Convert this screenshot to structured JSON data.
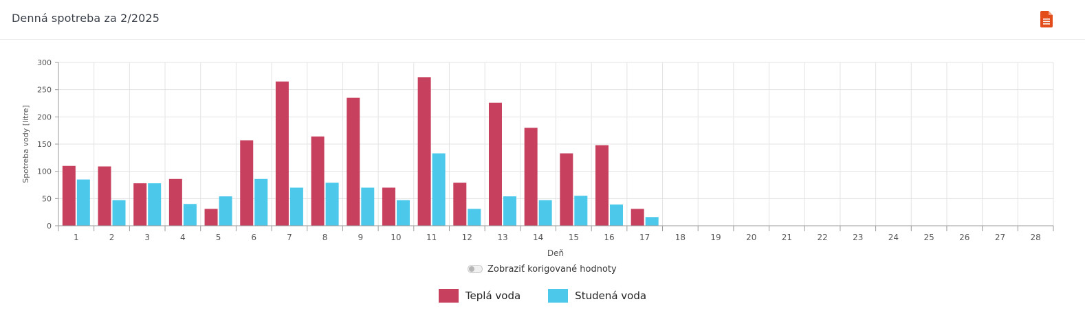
{
  "header": {
    "title": "Denná spotreba za 2/2025",
    "pdf_icon": "file-document-icon",
    "pdf_color": "#e24d1b"
  },
  "toggle": {
    "label": "Zobraziť korigované hodnoty",
    "checked": false
  },
  "colors": {
    "hot": "#c7405e",
    "cold": "#4cc8ea",
    "grid": "#e3e3e3",
    "axis": "#9a9a9a",
    "tick_text": "#555555"
  },
  "chart_data": {
    "type": "bar",
    "xlabel": "Deň",
    "ylabel": "Spotreba vody [litre]",
    "ylim": [
      0,
      300
    ],
    "yticks": [
      0,
      50,
      100,
      150,
      200,
      250,
      300
    ],
    "grid": true,
    "legend_position": "bottom",
    "categories": [
      "1",
      "2",
      "3",
      "4",
      "5",
      "6",
      "7",
      "8",
      "9",
      "10",
      "11",
      "12",
      "13",
      "14",
      "15",
      "16",
      "17",
      "18",
      "19",
      "20",
      "21",
      "22",
      "23",
      "24",
      "25",
      "26",
      "27",
      "28"
    ],
    "series": [
      {
        "name": "Teplá voda",
        "color": "#c7405e",
        "values": [
          110,
          109,
          78,
          86,
          31,
          157,
          265,
          164,
          235,
          70,
          273,
          79,
          226,
          180,
          133,
          148,
          31,
          0,
          0,
          0,
          0,
          0,
          0,
          0,
          0,
          0,
          0,
          0
        ]
      },
      {
        "name": "Studená voda",
        "color": "#4cc8ea",
        "values": [
          85,
          47,
          78,
          40,
          54,
          86,
          70,
          79,
          70,
          47,
          133,
          31,
          54,
          47,
          55,
          39,
          16,
          0,
          0,
          0,
          0,
          0,
          0,
          0,
          0,
          0,
          0,
          0
        ]
      }
    ]
  },
  "legend": {
    "items": [
      {
        "label": "Teplá voda"
      },
      {
        "label": "Studená voda"
      }
    ]
  }
}
